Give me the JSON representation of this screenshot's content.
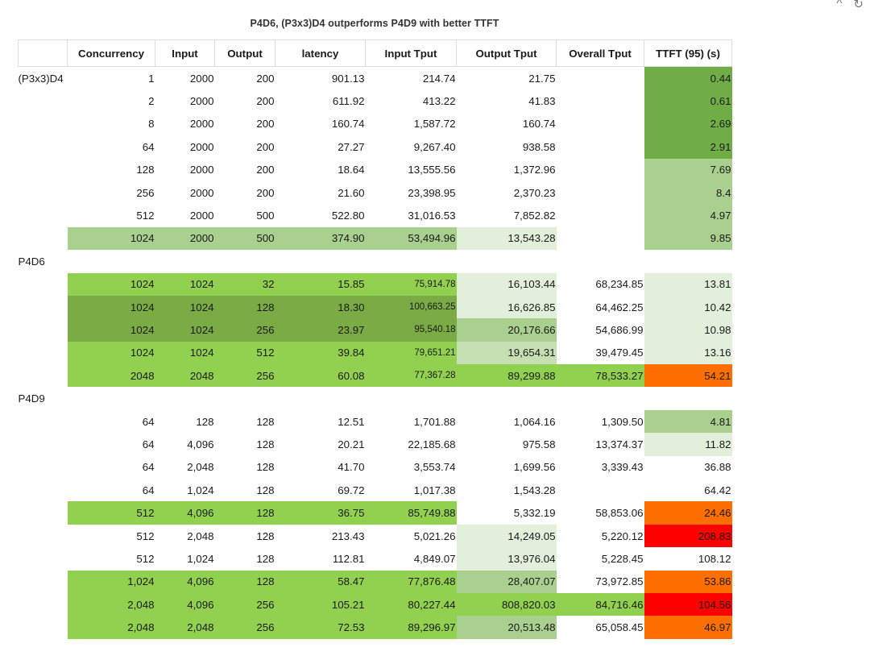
{
  "window_controls": {
    "collapse_icon": "^",
    "refresh_icon": "↻"
  },
  "title": "P4D6, (P3x3)D4 outperforms P4D9 with better TTFT",
  "colors": {
    "dark_green": "#70ad47",
    "bright_green": "#92d050",
    "mid_green": "#a9d08e",
    "light_green": "#e2efda",
    "pale_green": "#c6e0b4",
    "olive_green": "#7aab44",
    "orange": "#ff6f00",
    "red": "#ff0000"
  },
  "columns": [
    "",
    "Concurrency",
    "Input",
    "Output",
    "latency",
    "Input Tput",
    "Output Tput",
    "Overall Tput",
    "TTFT (95) (s)"
  ],
  "groups": [
    {
      "label": "(P3x3)D4",
      "label_inline": true,
      "rows": [
        {
          "cells": [
            "1",
            "2000",
            "200",
            "901.13",
            "214.74",
            "21.75",
            "",
            "0.44"
          ],
          "bg": [
            "",
            "",
            "",
            "",
            "",
            "",
            "",
            "#70ad47"
          ]
        },
        {
          "cells": [
            "2",
            "2000",
            "200",
            "611.92",
            "413.22",
            "41.83",
            "",
            "0.61"
          ],
          "bg": [
            "",
            "",
            "",
            "",
            "",
            "",
            "",
            "#70ad47"
          ]
        },
        {
          "cells": [
            "8",
            "2000",
            "200",
            "160.74",
            "1,587.72",
            "160.74",
            "",
            "2.69"
          ],
          "bg": [
            "",
            "",
            "",
            "",
            "",
            "",
            "",
            "#70ad47"
          ]
        },
        {
          "cells": [
            "64",
            "2000",
            "200",
            "27.27",
            "9,267.40",
            "938.58",
            "",
            "2.91"
          ],
          "bg": [
            "",
            "",
            "",
            "",
            "",
            "",
            "",
            "#70ad47"
          ]
        },
        {
          "cells": [
            "128",
            "2000",
            "200",
            "18.64",
            "13,555.56",
            "1,372.96",
            "",
            "7.69"
          ],
          "bg": [
            "",
            "",
            "",
            "",
            "",
            "",
            "",
            "#a9d08e"
          ]
        },
        {
          "cells": [
            "256",
            "2000",
            "200",
            "21.60",
            "23,398.95",
            "2,370.23",
            "",
            "8.4"
          ],
          "bg": [
            "",
            "",
            "",
            "",
            "",
            "",
            "",
            "#a9d08e"
          ]
        },
        {
          "cells": [
            "512",
            "2000",
            "500",
            "522.80",
            "31,016.53",
            "7,852.82",
            "",
            "4.97"
          ],
          "bg": [
            "",
            "",
            "",
            "",
            "",
            "",
            "",
            "#a9d08e"
          ]
        },
        {
          "cells": [
            "1024",
            "2000",
            "500",
            "374.90",
            "53,494.96",
            "13,543.28",
            "",
            "9.85"
          ],
          "bg": [
            "#a9d08e",
            "#a9d08e",
            "#a9d08e",
            "#a9d08e",
            "#a9d08e",
            "#e2efda",
            "",
            "#a9d08e"
          ]
        }
      ]
    },
    {
      "label": "P4D6",
      "label_inline": false,
      "small_col": 4,
      "rows": [
        {
          "cells": [
            "1024",
            "1024",
            "32",
            "15.85",
            "75,914.78",
            "16,103.44",
            "68,234.85",
            "13.81"
          ],
          "bg": [
            "#92d050",
            "#92d050",
            "#92d050",
            "#92d050",
            "#92d050",
            "#e2efda",
            "",
            "#e2efda"
          ]
        },
        {
          "cells": [
            "1024",
            "1024",
            "128",
            "18.30",
            "100,663.25",
            "16,626.85",
            "64,462.25",
            "10.42"
          ],
          "bg": [
            "#7aab44",
            "#7aab44",
            "#7aab44",
            "#7aab44",
            "#7aab44",
            "#e2efda",
            "",
            "#e2efda"
          ]
        },
        {
          "cells": [
            "1024",
            "1024",
            "256",
            "23.97",
            "95,540.18",
            "20,176.66",
            "54,686.99",
            "10.98"
          ],
          "bg": [
            "#7aab44",
            "#7aab44",
            "#7aab44",
            "#7aab44",
            "#7aab44",
            "#a9d08e",
            "",
            "#e2efda"
          ]
        },
        {
          "cells": [
            "1024",
            "1024",
            "512",
            "39.84",
            "79,651.21",
            "19,654.31",
            "39,479.45",
            "13.16"
          ],
          "bg": [
            "#92d050",
            "#92d050",
            "#92d050",
            "#92d050",
            "#92d050",
            "#c6e0b4",
            "",
            "#e2efda"
          ]
        },
        {
          "cells": [
            "2048",
            "2048",
            "256",
            "60.08",
            "77,367.28",
            "89,299.88",
            "78,533.27",
            "54.21"
          ],
          "bg": [
            "#92d050",
            "#92d050",
            "#92d050",
            "#92d050",
            "#92d050",
            "#92d050",
            "#92d050",
            "#ff6f00"
          ]
        }
      ]
    },
    {
      "label": "P4D9",
      "label_inline": false,
      "rows": [
        {
          "cells": [
            "64",
            "128",
            "128",
            "12.51",
            "1,701.88",
            "1,064.16",
            "1,309.50",
            "4.81"
          ],
          "bg": [
            "",
            "",
            "",
            "",
            "",
            "",
            "",
            "#a9d08e"
          ]
        },
        {
          "cells": [
            "64",
            "4,096",
            "128",
            "20.21",
            "22,185.68",
            "975.58",
            "13,374.37",
            "11.82"
          ],
          "bg": [
            "",
            "",
            "",
            "",
            "",
            "",
            "",
            "#e2efda"
          ]
        },
        {
          "cells": [
            "64",
            "2,048",
            "128",
            "41.70",
            "3,553.74",
            "1,699.56",
            "3,339.43",
            "36.88"
          ],
          "bg": [
            "",
            "",
            "",
            "",
            "",
            "",
            "",
            ""
          ]
        },
        {
          "cells": [
            "64",
            "1,024",
            "128",
            "69.72",
            "1,017.38",
            "1,543.28",
            "",
            "64.42"
          ],
          "bg": [
            "",
            "",
            "",
            "",
            "",
            "",
            "",
            ""
          ]
        },
        {
          "cells": [
            "512",
            "4,096",
            "128",
            "36.75",
            "85,749.88",
            "5,332.19",
            "58,853.06",
            "24.46"
          ],
          "bg": [
            "#92d050",
            "#92d050",
            "#92d050",
            "#92d050",
            "#92d050",
            "",
            "",
            "#ff6f00"
          ]
        },
        {
          "cells": [
            "512",
            "2,048",
            "128",
            "213.43",
            "5,021.26",
            "14,249.05",
            "5,220.12",
            "208.83"
          ],
          "bg": [
            "",
            "",
            "",
            "",
            "",
            "#e2efda",
            "",
            "#ff0000"
          ]
        },
        {
          "cells": [
            "512",
            "1,024",
            "128",
            "112.81",
            "4,849.07",
            "13,976.04",
            "5,228.45",
            "108.12"
          ],
          "bg": [
            "",
            "",
            "",
            "",
            "",
            "#e2efda",
            "",
            ""
          ]
        },
        {
          "cells": [
            "1,024",
            "4,096",
            "128",
            "58.47",
            "77,876.48",
            "28,407.07",
            "73,972.85",
            "53.86"
          ],
          "bg": [
            "#92d050",
            "#92d050",
            "#92d050",
            "#92d050",
            "#92d050",
            "#a9d08e",
            "",
            "#ff6f00"
          ]
        },
        {
          "cells": [
            "2,048",
            "4,096",
            "256",
            "105.21",
            "80,227.44",
            "808,820.03",
            "84,716.46",
            "104.56"
          ],
          "bg": [
            "#92d050",
            "#92d050",
            "#92d050",
            "#92d050",
            "#92d050",
            "#92d050",
            "#92d050",
            "#ff0000"
          ]
        },
        {
          "cells": [
            "2,048",
            "2,048",
            "256",
            "72.53",
            "89,296.97",
            "20,513.48",
            "65,058.45",
            "46.97"
          ],
          "bg": [
            "#92d050",
            "#92d050",
            "#92d050",
            "#92d050",
            "#92d050",
            "#a9d08e",
            "",
            "#ff6f00"
          ]
        }
      ]
    }
  ]
}
